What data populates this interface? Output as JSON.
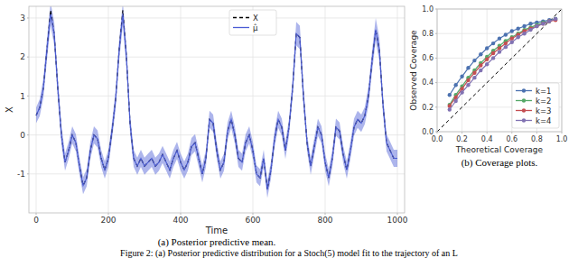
{
  "chart_data": [
    {
      "type": "line",
      "title": "(a) Posterior predictive mean.",
      "x_label": "Time",
      "y_label": "X",
      "x": [
        0,
        10,
        20,
        30,
        40,
        50,
        60,
        70,
        80,
        90,
        100,
        110,
        120,
        130,
        140,
        150,
        160,
        170,
        180,
        190,
        200,
        210,
        220,
        230,
        240,
        250,
        260,
        270,
        280,
        290,
        300,
        310,
        320,
        330,
        340,
        350,
        360,
        370,
        380,
        390,
        400,
        410,
        420,
        430,
        440,
        450,
        460,
        470,
        480,
        490,
        500,
        510,
        520,
        530,
        540,
        550,
        560,
        570,
        580,
        590,
        600,
        610,
        620,
        630,
        640,
        650,
        660,
        670,
        680,
        690,
        700,
        710,
        720,
        730,
        740,
        750,
        760,
        770,
        780,
        790,
        800,
        810,
        820,
        830,
        840,
        850,
        860,
        870,
        880,
        890,
        900,
        910,
        920,
        930,
        940,
        950,
        960,
        970,
        980,
        990,
        1000
      ],
      "series": [
        {
          "name": "X",
          "color": "#000000",
          "line_style": "dashed",
          "values": [
            0.5,
            0.7,
            1.2,
            2.2,
            3.2,
            2.6,
            1.2,
            0.0,
            -0.7,
            -0.4,
            0.0,
            -0.2,
            -0.8,
            -1.3,
            -1.1,
            -0.4,
            0.0,
            -0.1,
            -0.6,
            -0.9,
            -0.6,
            0.1,
            0.9,
            2.2,
            3.2,
            2.0,
            0.3,
            -0.6,
            -0.8,
            -0.6,
            -0.8,
            -0.7,
            -0.6,
            -0.8,
            -0.7,
            -0.5,
            -0.7,
            -0.9,
            -0.6,
            -0.4,
            -0.7,
            -0.9,
            -0.7,
            -0.3,
            -0.2,
            -0.6,
            -1.0,
            -0.6,
            0.4,
            0.3,
            -0.4,
            -0.9,
            -0.7,
            0.1,
            0.4,
            0.0,
            -0.6,
            -0.7,
            -0.2,
            0.0,
            -0.4,
            -1.0,
            -1.1,
            -0.6,
            -1.4,
            -0.9,
            -0.1,
            0.4,
            0.2,
            -0.4,
            0.2,
            1.2,
            2.6,
            2.5,
            1.0,
            -0.2,
            -0.8,
            -0.3,
            0.2,
            0.0,
            -0.7,
            -1.1,
            -0.6,
            0.2,
            0.1,
            -0.5,
            -0.9,
            -0.4,
            0.2,
            0.4,
            0.3,
            0.5,
            1.0,
            1.9,
            2.7,
            2.2,
            0.8,
            -0.2,
            -0.4,
            -0.6,
            -0.6
          ]
        },
        {
          "name": "μ̂",
          "color": "#4a5bd4",
          "line_style": "solid",
          "values": [
            0.5,
            0.7,
            1.2,
            2.2,
            3.1,
            2.6,
            1.2,
            0.0,
            -0.7,
            -0.4,
            0.0,
            -0.2,
            -0.8,
            -1.3,
            -1.1,
            -0.4,
            0.0,
            -0.1,
            -0.6,
            -0.9,
            -0.6,
            0.1,
            0.9,
            2.2,
            3.1,
            2.0,
            0.3,
            -0.6,
            -0.8,
            -0.6,
            -0.8,
            -0.7,
            -0.6,
            -0.8,
            -0.7,
            -0.5,
            -0.7,
            -0.9,
            -0.6,
            -0.4,
            -0.7,
            -0.9,
            -0.7,
            -0.3,
            -0.2,
            -0.6,
            -1.0,
            -0.6,
            0.4,
            0.3,
            -0.4,
            -0.9,
            -0.7,
            0.1,
            0.4,
            0.0,
            -0.6,
            -0.7,
            -0.2,
            0.0,
            -0.4,
            -1.0,
            -1.1,
            -0.6,
            -1.4,
            -0.9,
            -0.1,
            0.4,
            0.2,
            -0.4,
            0.2,
            1.2,
            2.6,
            2.5,
            1.0,
            -0.2,
            -0.8,
            -0.3,
            0.2,
            0.0,
            -0.7,
            -1.1,
            -0.6,
            0.2,
            0.1,
            -0.5,
            -0.9,
            -0.4,
            0.2,
            0.4,
            0.3,
            0.5,
            1.0,
            1.9,
            2.7,
            2.2,
            0.8,
            -0.2,
            -0.4,
            -0.6,
            -0.6
          ],
          "error": [
            0.2,
            0.22,
            0.25,
            0.28,
            0.3,
            0.3,
            0.28,
            0.25,
            0.22,
            0.22,
            0.22,
            0.22,
            0.22,
            0.22,
            0.22,
            0.22,
            0.22,
            0.22,
            0.22,
            0.22,
            0.22,
            0.22,
            0.25,
            0.28,
            0.3,
            0.3,
            0.25,
            0.22,
            0.22,
            0.22,
            0.22,
            0.22,
            0.22,
            0.22,
            0.22,
            0.22,
            0.22,
            0.22,
            0.22,
            0.22,
            0.22,
            0.22,
            0.22,
            0.22,
            0.22,
            0.22,
            0.22,
            0.22,
            0.22,
            0.22,
            0.22,
            0.22,
            0.22,
            0.22,
            0.22,
            0.22,
            0.22,
            0.22,
            0.22,
            0.22,
            0.22,
            0.22,
            0.22,
            0.22,
            0.22,
            0.22,
            0.22,
            0.22,
            0.22,
            0.22,
            0.22,
            0.25,
            0.3,
            0.3,
            0.28,
            0.22,
            0.22,
            0.22,
            0.22,
            0.22,
            0.22,
            0.22,
            0.22,
            0.22,
            0.22,
            0.22,
            0.22,
            0.22,
            0.22,
            0.22,
            0.22,
            0.22,
            0.25,
            0.28,
            0.3,
            0.3,
            0.25,
            0.22,
            0.22,
            0.22,
            0.22
          ]
        }
      ],
      "xlim": [
        -20,
        1020
      ],
      "xticks": [
        0,
        200,
        400,
        600,
        800,
        1000
      ],
      "ylim": [
        -2.0,
        3.3
      ],
      "yticks": [
        -1,
        0,
        1,
        2,
        3
      ],
      "grid": true,
      "legend": "upper center"
    },
    {
      "type": "line",
      "title": "(b) Coverage plots.",
      "x_label": "Theoretical Coverage",
      "y_label": "Observed Coverage",
      "x": [
        0.1,
        0.15,
        0.2,
        0.25,
        0.3,
        0.35,
        0.4,
        0.45,
        0.5,
        0.55,
        0.6,
        0.65,
        0.7,
        0.75,
        0.8,
        0.85,
        0.9,
        0.95
      ],
      "series": [
        {
          "name": "k=1",
          "color": "#4c72b0",
          "marker": "circle",
          "values": [
            0.3,
            0.38,
            0.45,
            0.52,
            0.58,
            0.63,
            0.68,
            0.72,
            0.76,
            0.79,
            0.82,
            0.84,
            0.86,
            0.88,
            0.89,
            0.9,
            0.91,
            0.92
          ]
        },
        {
          "name": "k=2",
          "color": "#55a868",
          "marker": "circle",
          "values": [
            0.22,
            0.3,
            0.37,
            0.44,
            0.5,
            0.56,
            0.61,
            0.66,
            0.7,
            0.74,
            0.77,
            0.8,
            0.83,
            0.85,
            0.87,
            0.89,
            0.9,
            0.92
          ]
        },
        {
          "name": "k=3",
          "color": "#c44e52",
          "marker": "circle",
          "values": [
            0.21,
            0.28,
            0.35,
            0.42,
            0.48,
            0.54,
            0.59,
            0.64,
            0.68,
            0.72,
            0.76,
            0.79,
            0.82,
            0.84,
            0.86,
            0.88,
            0.9,
            0.91
          ]
        },
        {
          "name": "k=4",
          "color": "#8172b2",
          "marker": "circle",
          "values": [
            0.18,
            0.25,
            0.32,
            0.38,
            0.44,
            0.5,
            0.55,
            0.6,
            0.65,
            0.69,
            0.73,
            0.77,
            0.8,
            0.83,
            0.86,
            0.88,
            0.9,
            0.92
          ]
        }
      ],
      "diagonal": {
        "x": [
          0,
          1
        ],
        "values": [
          0,
          1
        ],
        "color": "#000000",
        "line_style": "dashed"
      },
      "xlim": [
        0,
        1
      ],
      "xticks": [
        {
          "value": 0,
          "label": "0.0"
        },
        {
          "value": 0.2,
          "label": "0.2"
        },
        {
          "value": 0.4,
          "label": "0.4"
        },
        {
          "value": 0.6,
          "label": "0.6"
        },
        {
          "value": 0.8,
          "label": "0.8"
        },
        {
          "value": 1,
          "label": "1.0"
        }
      ],
      "ylim": [
        0,
        1
      ],
      "yticks": [
        {
          "value": 0,
          "label": "0.0"
        },
        {
          "value": 0.2,
          "label": "0.2"
        },
        {
          "value": 0.4,
          "label": "0.4"
        },
        {
          "value": 0.6,
          "label": "0.6"
        },
        {
          "value": 0.8,
          "label": "0.8"
        },
        {
          "value": 1,
          "label": "1.0"
        }
      ],
      "grid": true,
      "legend": "lower right"
    }
  ],
  "caption": "Figure 2: (a) Posterior predictive distribution for a Stoch(5) model fit to the trajectory of an L"
}
